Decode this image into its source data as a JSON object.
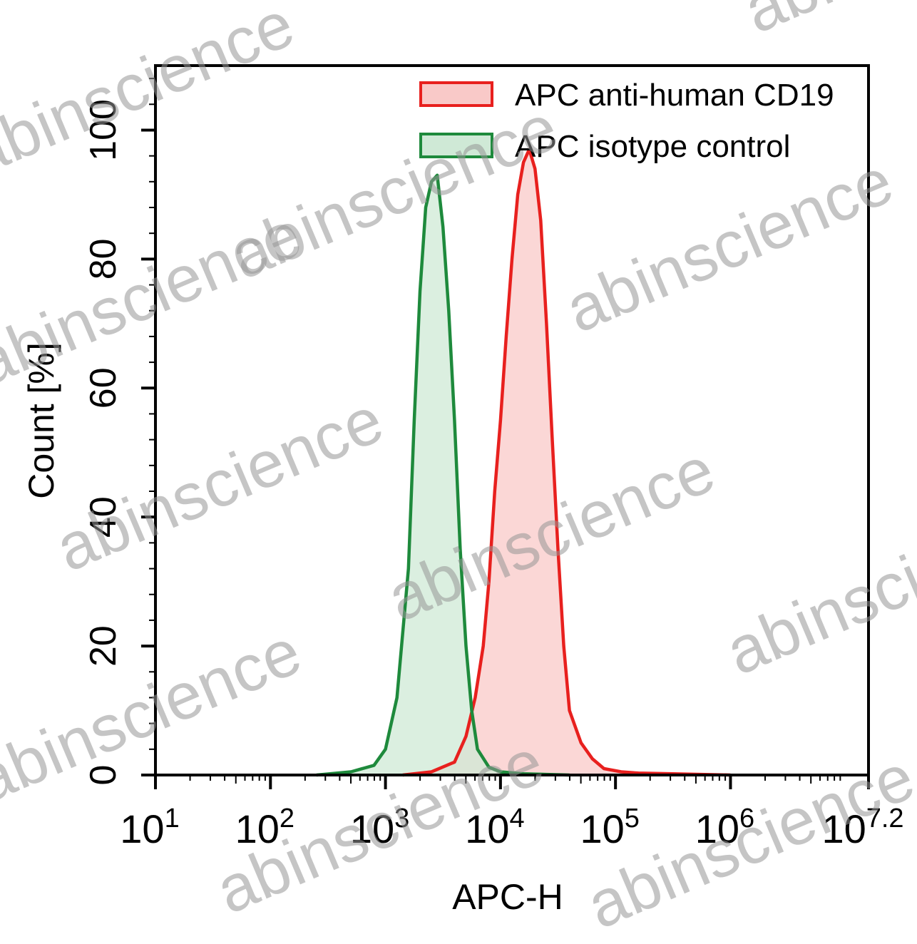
{
  "watermark": "abinscience",
  "chart_data": {
    "type": "area",
    "title": "",
    "xlabel": "APC-H",
    "ylabel": "Count [%]",
    "xscale": "log",
    "xlim_log10": [
      1,
      7.2
    ],
    "ylim": [
      0,
      110
    ],
    "x_ticks": [
      {
        "base": "10",
        "exp": "1"
      },
      {
        "base": "10",
        "exp": "2"
      },
      {
        "base": "10",
        "exp": "3"
      },
      {
        "base": "10",
        "exp": "4"
      },
      {
        "base": "10",
        "exp": "5"
      },
      {
        "base": "10",
        "exp": "6"
      },
      {
        "base": "10",
        "exp": "7.2"
      }
    ],
    "y_ticks": [
      "0",
      "20",
      "40",
      "60",
      "80",
      "100"
    ],
    "grid": false,
    "legend_position": "top-right",
    "series": [
      {
        "name": "APC anti-human CD19",
        "color": "#e8201e",
        "fill": "#f9c9c8",
        "x_log10": [
          3.15,
          3.4,
          3.6,
          3.7,
          3.78,
          3.85,
          3.9,
          3.95,
          4.0,
          4.05,
          4.1,
          4.15,
          4.2,
          4.25,
          4.3,
          4.35,
          4.4,
          4.45,
          4.5,
          4.55,
          4.6,
          4.7,
          4.8,
          4.9,
          5.05,
          5.2,
          5.5,
          6.0
        ],
        "y": [
          0,
          0.5,
          2,
          6,
          12,
          20,
          30,
          44,
          55,
          68,
          80,
          90,
          95,
          97,
          94,
          86,
          70,
          52,
          35,
          20,
          10,
          5,
          2.5,
          1,
          0.5,
          0.3,
          0.2,
          0
        ]
      },
      {
        "name": "APC isotype control",
        "color": "#1e8a3c",
        "fill": "#cfe9d6",
        "x_log10": [
          2.4,
          2.7,
          2.9,
          3.0,
          3.1,
          3.2,
          3.25,
          3.3,
          3.35,
          3.4,
          3.45,
          3.5,
          3.55,
          3.6,
          3.65,
          3.7,
          3.75,
          3.8,
          3.9,
          4.0,
          4.2,
          4.4,
          4.6
        ],
        "y": [
          0,
          0.5,
          1.5,
          4,
          12,
          32,
          55,
          75,
          88,
          92,
          93,
          85,
          72,
          55,
          35,
          20,
          10,
          4,
          1.2,
          0.5,
          0.2,
          0.1,
          0
        ]
      }
    ]
  }
}
